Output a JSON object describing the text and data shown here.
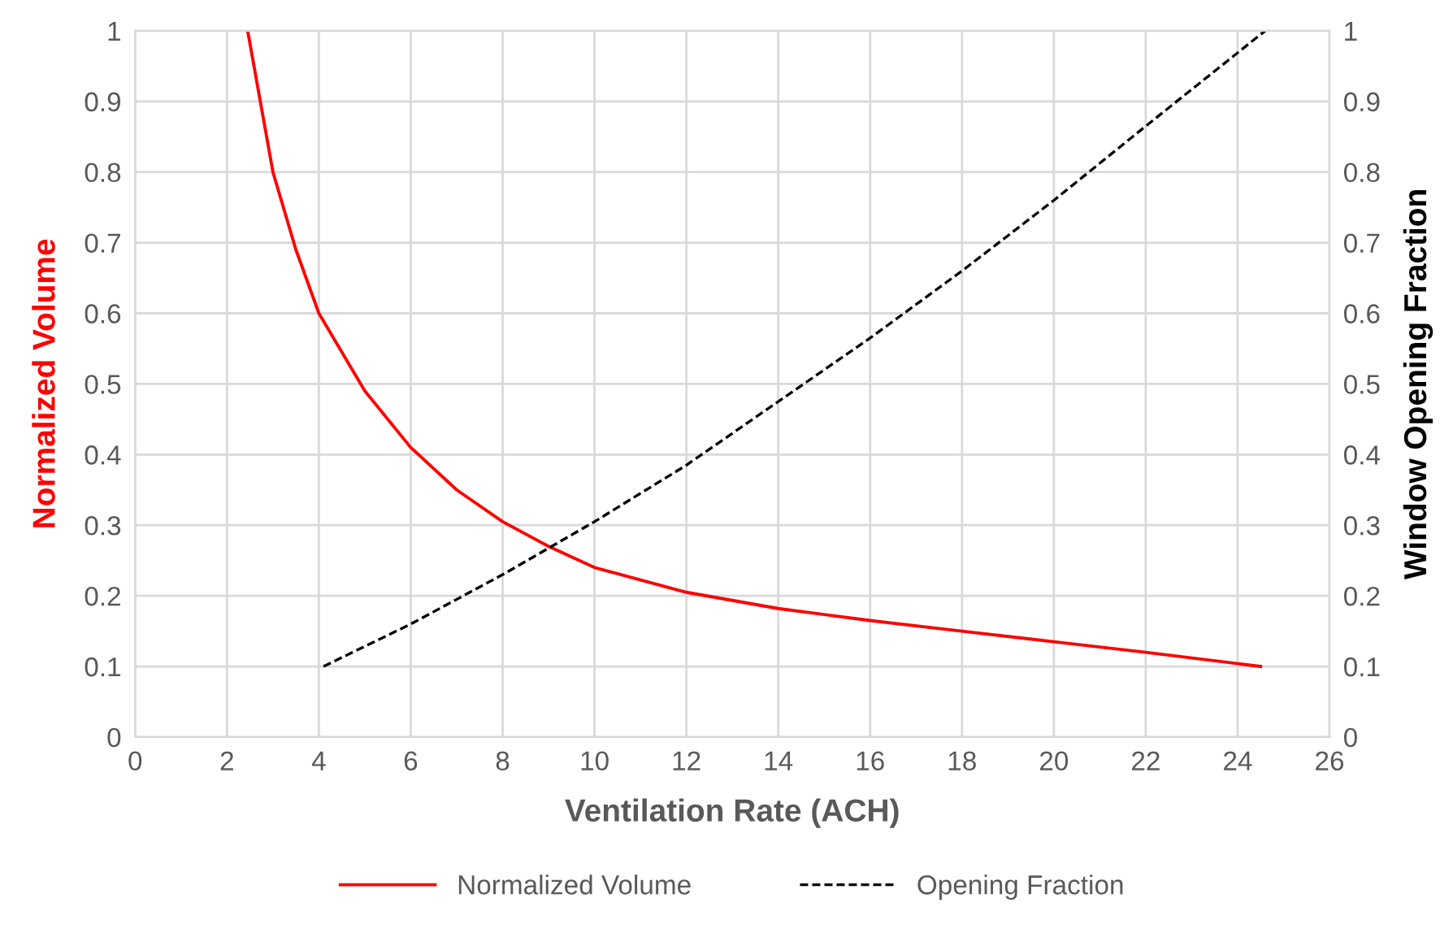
{
  "chart_data": {
    "type": "line",
    "xlabel": "Ventilation Rate (ACH)",
    "ylabel": "Normalized Volume",
    "y2label": "Window Opening Fraction",
    "xlim": [
      0,
      26
    ],
    "xticks": [
      0,
      2,
      4,
      6,
      8,
      10,
      12,
      14,
      16,
      18,
      20,
      22,
      24,
      26
    ],
    "ylim": [
      0,
      1
    ],
    "yticks": [
      0,
      0.1,
      0.2,
      0.3,
      0.4,
      0.5,
      0.6,
      0.7,
      0.8,
      0.9,
      1
    ],
    "y2lim": [
      0,
      1
    ],
    "y2ticks": [
      0,
      0.1,
      0.2,
      0.3,
      0.4,
      0.5,
      0.6,
      0.7,
      0.8,
      0.9,
      1
    ],
    "grid": true,
    "legend": "bottom",
    "series": [
      {
        "name": "Normalized Volume",
        "color": "#ff0000",
        "line_style": "solid",
        "x": [
          2.45,
          3,
          3.5,
          4,
          5,
          6,
          7,
          8,
          9,
          10,
          12,
          14,
          16,
          18,
          20,
          22,
          24.5
        ],
        "values": [
          1,
          0.8,
          0.69,
          0.6,
          0.49,
          0.41,
          0.35,
          0.305,
          0.27,
          0.24,
          0.205,
          0.182,
          0.165,
          0.15,
          0.135,
          0.12,
          0.1
        ]
      },
      {
        "name": "Opening Fraction",
        "color": "#000000",
        "line_style": "dashed",
        "axis": "y2",
        "x": [
          4.1,
          6,
          8,
          10,
          12,
          14,
          16,
          18,
          20,
          22,
          24.6
        ],
        "values": [
          0.1,
          0.16,
          0.23,
          0.305,
          0.385,
          0.475,
          0.565,
          0.66,
          0.76,
          0.865,
          1.0
        ]
      }
    ]
  }
}
